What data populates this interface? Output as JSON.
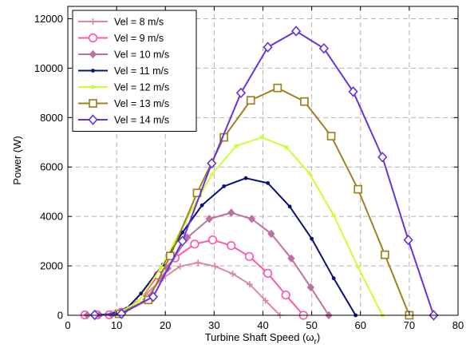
{
  "chart_data": {
    "type": "line",
    "xlabel": "Turbine Shaft Speed (ω",
    "xlabel_sub": "r",
    "xlabel_close": ")",
    "ylabel": "Power (W)",
    "xlim": [
      0,
      80
    ],
    "ylim": [
      0,
      12500
    ],
    "xticks": [
      0,
      10,
      20,
      30,
      40,
      50,
      60,
      70,
      80
    ],
    "yticks": [
      0,
      2000,
      4000,
      6000,
      8000,
      10000,
      12000
    ],
    "grid": true,
    "legend_position": "top-left",
    "series": [
      {
        "name": "Vel = 8 m/s",
        "color": "#dd8899",
        "marker": "plus",
        "x": [
          3.5,
          6.5,
          9.5,
          12.7,
          16.0,
          19.5,
          23.0,
          26.7,
          30.2,
          33.8,
          37.3,
          40.5,
          43.5
        ],
        "y": [
          10,
          20,
          70,
          320,
          850,
          1500,
          1980,
          2130,
          1980,
          1680,
          1250,
          600,
          0
        ]
      },
      {
        "name": "Vel = 9 m/s",
        "color": "#ff55aa",
        "marker": "circle",
        "x": [
          3.5,
          6.0,
          8.5,
          11.0,
          15.0,
          18.5,
          22.0,
          26.0,
          29.7,
          33.5,
          37.2,
          41.0,
          44.7,
          48.3
        ],
        "y": [
          15,
          15,
          20,
          120,
          680,
          1620,
          2320,
          2880,
          3050,
          2820,
          2380,
          1700,
          820,
          0
        ]
      },
      {
        "name": "Vel = 10 m/s",
        "color": "#c070a0",
        "marker": "diamond",
        "x": [
          4.0,
          6.5,
          9.0,
          11.5,
          16.0,
          20.5,
          24.5,
          29.0,
          33.5,
          37.7,
          41.7,
          45.8,
          49.8,
          53.5
        ],
        "y": [
          10,
          15,
          30,
          150,
          620,
          1900,
          3150,
          3900,
          4150,
          3900,
          3300,
          2300,
          1130,
          0
        ]
      },
      {
        "name": "Vel = 11 m/s",
        "color": "#0a107a",
        "marker": "dot",
        "x": [
          5.5,
          9.5,
          12.0,
          15.0,
          19.5,
          23.5,
          27.5,
          32.0,
          36.5,
          41.0,
          45.5,
          50.0,
          54.5,
          59.0
        ],
        "y": [
          10,
          60,
          260,
          880,
          2050,
          3350,
          4450,
          5220,
          5550,
          5350,
          4400,
          3100,
          1500,
          0
        ]
      },
      {
        "name": "Vel = 12 m/s",
        "color": "#ccff33",
        "marker": "square-small",
        "x": [
          10.0,
          14.5,
          19.0,
          24.0,
          29.5,
          34.5,
          39.8,
          44.8,
          49.5,
          54.5,
          59.5,
          64.5
        ],
        "y": [
          40,
          560,
          1900,
          3750,
          5700,
          6850,
          7200,
          6800,
          5750,
          4050,
          1950,
          0
        ]
      },
      {
        "name": "Vel = 13 m/s",
        "color": "#a08020",
        "marker": "square",
        "x": [
          10.5,
          16.5,
          21.0,
          26.5,
          32.0,
          37.5,
          43.0,
          48.5,
          54.0,
          59.5,
          65.0,
          70.0
        ],
        "y": [
          60,
          620,
          2400,
          4950,
          7200,
          8700,
          9200,
          8650,
          7250,
          5100,
          2450,
          0
        ]
      },
      {
        "name": "Vel = 14 m/s",
        "color": "#6633dd",
        "marker": "diamond-open",
        "x": [
          5.5,
          11.0,
          17.5,
          23.5,
          29.5,
          35.5,
          41.0,
          46.8,
          52.5,
          58.5,
          64.5,
          69.8,
          75.0
        ],
        "y": [
          15,
          60,
          750,
          3000,
          6150,
          9000,
          10850,
          11500,
          10800,
          9050,
          6400,
          3050,
          0
        ]
      }
    ]
  }
}
